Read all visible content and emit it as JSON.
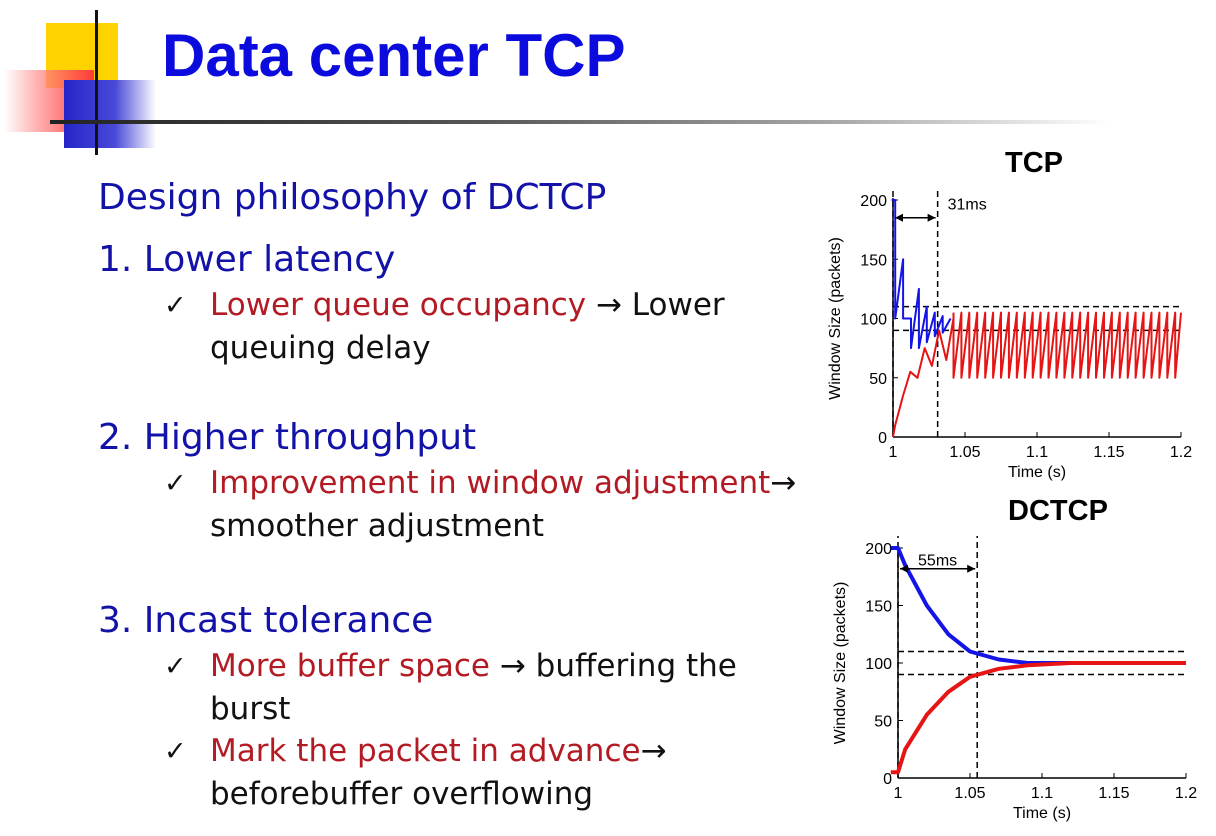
{
  "slide": {
    "title": "Data center TCP",
    "heading": "Design philosophy of DCTCP",
    "points": [
      {
        "label": "1.  Lower latency",
        "subs": [
          {
            "red": "Lower queue occupancy",
            "rest_line1": " → Lower",
            "line2": "queuing delay"
          }
        ]
      },
      {
        "label": "2. Higher throughput",
        "subs": [
          {
            "red": "Improvement in window adjustment",
            "rest_line1": "→",
            "line2": "smoother adjustment"
          }
        ]
      },
      {
        "label": "3. Incast tolerance",
        "subs": [
          {
            "red": "More buffer space",
            "rest_line1": " → buffering the",
            "line2": "burst"
          },
          {
            "red": "Mark the packet in advance",
            "rest_line1": "→",
            "line2": "beforebuffer overflowing"
          }
        ]
      }
    ],
    "check_glyph": "✓"
  },
  "chart_data": [
    {
      "type": "line",
      "title": "TCP",
      "xlabel": "Time (s)",
      "ylabel": "Window Size (packets)",
      "xlim": [
        1,
        1.2
      ],
      "ylim": [
        0,
        200
      ],
      "xticks": [
        1,
        1.05,
        1.1,
        1.15,
        1.2
      ],
      "xtick_labels": [
        "1",
        "1.05",
        "1.1",
        "1.15",
        "1.2"
      ],
      "yticks": [
        0,
        50,
        100,
        150,
        200
      ],
      "grid": false,
      "annotation": {
        "text": "31ms",
        "x_from": 1.0,
        "x_to": 1.031
      },
      "reference_lines": {
        "y": [
          90,
          110
        ],
        "x": [
          1.0,
          1.031
        ]
      },
      "series": [
        {
          "color": "#1414e6",
          "x": [
            0.999,
            1.0,
            1.0,
            1.0015,
            1.0015,
            1.007,
            1.007,
            1.0125,
            1.0125,
            1.018,
            1.018,
            1.0235,
            1.0235,
            1.029,
            1.029,
            1.0345,
            1.0345,
            1.04
          ],
          "y": [
            200,
            200,
            200,
            200,
            100,
            150,
            100,
            100,
            75,
            125,
            75,
            110,
            80,
            105,
            85,
            102,
            88,
            100
          ]
        },
        {
          "color": "#e61414",
          "x": [
            1.0,
            1.0015,
            1.007,
            1.012,
            1.017,
            1.022,
            1.027,
            1.032,
            1.037,
            1.042
          ],
          "y": [
            0,
            10,
            35,
            55,
            50,
            75,
            60,
            90,
            65,
            100
          ]
        },
        {
          "color": "#e61414",
          "x": [
            1.042,
            1.2
          ],
          "y": [
            100,
            100
          ],
          "sawtooth": {
            "min": 50,
            "max": 105,
            "period_s": 0.0055
          }
        }
      ]
    },
    {
      "type": "line",
      "title": "DCTCP",
      "xlabel": "Time (s)",
      "ylabel": "Window Size (packets)",
      "xlim": [
        1,
        1.2
      ],
      "ylim": [
        0,
        200
      ],
      "xticks": [
        1,
        1.05,
        1.1,
        1.15,
        1.2
      ],
      "xtick_labels": [
        "1",
        "1.05",
        "1.1",
        "1.15",
        "1.2"
      ],
      "yticks": [
        0,
        50,
        100,
        150,
        200
      ],
      "grid": false,
      "annotation": {
        "text": "55ms",
        "x_from": 1.0,
        "x_to": 1.055
      },
      "reference_lines": {
        "y": [
          90,
          110
        ],
        "x": [
          1.0,
          1.055
        ]
      },
      "series": [
        {
          "color": "#1414e6",
          "x": [
            0.995,
            1.0,
            1.005,
            1.02,
            1.035,
            1.05,
            1.07,
            1.09,
            1.12,
            1.15,
            1.2
          ],
          "y": [
            200,
            200,
            185,
            150,
            125,
            110,
            103,
            100,
            100,
            100,
            100
          ]
        },
        {
          "color": "#e61414",
          "x": [
            0.995,
            1.0,
            1.005,
            1.02,
            1.035,
            1.05,
            1.07,
            1.09,
            1.12,
            1.15,
            1.2
          ],
          "y": [
            5,
            5,
            25,
            55,
            75,
            88,
            95,
            98,
            100,
            100,
            100
          ]
        }
      ]
    }
  ]
}
